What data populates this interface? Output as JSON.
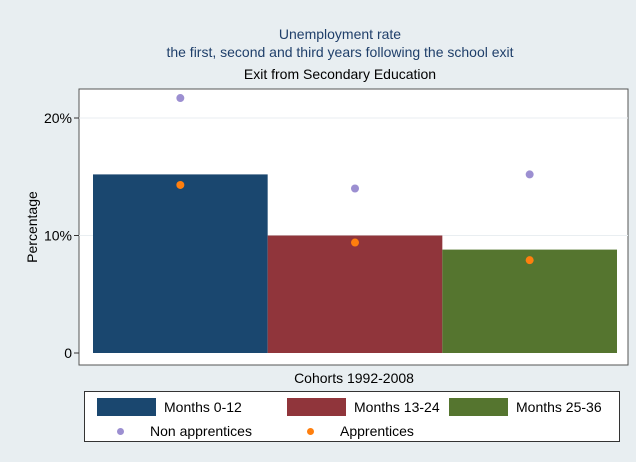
{
  "chart_data": {
    "type": "bar",
    "title": "Unemployment rate",
    "subtitle": "the first, second and third years following the school exit",
    "panel_title": "Exit from Secondary Education",
    "ylabel": "Percentage",
    "xlabel": "Cohorts 1992-2008",
    "ylim": [
      0,
      23
    ],
    "yticks": [
      {
        "value": 0,
        "label": "0"
      },
      {
        "value": 10,
        "label": "10%"
      },
      {
        "value": 20,
        "label": "20%"
      }
    ],
    "grid": true,
    "categories": [
      "Months 0-12",
      "Months 13-24",
      "Months 25-36"
    ],
    "series": [
      {
        "name": "Months 0-12",
        "values": [
          15.2,
          null,
          null
        ],
        "color": "#1a476f"
      },
      {
        "name": "Months 13-24",
        "values": [
          null,
          10.0,
          null
        ],
        "color": "#90353b"
      },
      {
        "name": "Months 25-36",
        "values": [
          null,
          null,
          8.8
        ],
        "color": "#55752f"
      }
    ],
    "points": [
      {
        "name": "Non apprentices",
        "values": [
          21.7,
          14.0,
          15.2
        ],
        "color": "#9c8fd1"
      },
      {
        "name": "Apprentices",
        "values": [
          14.3,
          9.4,
          7.9
        ],
        "color": "#ff7f0e"
      }
    ],
    "legend_position": "bottom"
  }
}
